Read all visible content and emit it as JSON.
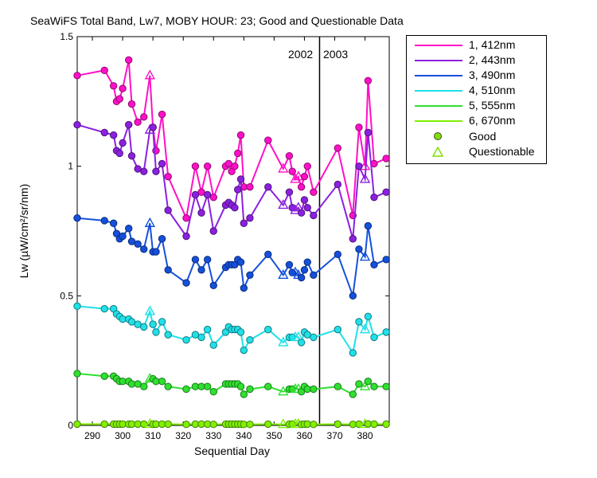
{
  "chart_data": {
    "type": "line",
    "title": "SeaWiFS Total Band,  Lw7, MOBY HOUR: 23;  Good and Questionable Data",
    "xlabel": "Sequential Day",
    "ylabel": "Lw (µW/cm²/sr/nm)",
    "xlim": [
      285,
      388
    ],
    "ylim": [
      0,
      1.5
    ],
    "xticks": [
      290,
      300,
      310,
      320,
      330,
      340,
      350,
      360,
      370,
      380
    ],
    "yticks": [
      0,
      0.5,
      1,
      1.5
    ],
    "ytick_labels": [
      "0",
      "0.5",
      "1",
      "1.5"
    ],
    "grid": false,
    "legend_position": "outside-right",
    "year_divider_x": 365,
    "year_labels": [
      "2002",
      "2003"
    ],
    "x": [
      285,
      294,
      297,
      298,
      299,
      300,
      302,
      303,
      305,
      307,
      309,
      310,
      311,
      313,
      315,
      321,
      324,
      326,
      328,
      330,
      334,
      335,
      336,
      337,
      338,
      339,
      340,
      342,
      348,
      353,
      355,
      356,
      357,
      358,
      359,
      360,
      361,
      363,
      371,
      376,
      378,
      380,
      381,
      383,
      387
    ],
    "series": [
      {
        "name": "1, 412nm",
        "color": "#ff10c8",
        "values": [
          1.35,
          1.37,
          1.31,
          1.25,
          1.26,
          1.3,
          1.41,
          1.24,
          1.17,
          1.19,
          1.35,
          1.15,
          1.06,
          1.2,
          0.96,
          0.8,
          1.0,
          0.9,
          1.0,
          0.88,
          1.0,
          1.01,
          0.98,
          1.0,
          1.05,
          1.12,
          0.92,
          0.92,
          1.1,
          0.99,
          1.04,
          0.98,
          0.95,
          0.96,
          0.92,
          0.96,
          1.0,
          0.9,
          1.07,
          0.81,
          1.15,
          1.0,
          1.33,
          1.01,
          1.03
        ]
      },
      {
        "name": "2, 443nm",
        "color": "#8c20e0",
        "values": [
          1.16,
          1.13,
          1.12,
          1.06,
          1.05,
          1.09,
          1.16,
          1.04,
          0.99,
          0.98,
          1.14,
          1.15,
          0.98,
          1.01,
          0.83,
          0.73,
          0.89,
          0.82,
          0.89,
          0.75,
          0.85,
          0.86,
          0.85,
          0.84,
          0.91,
          0.95,
          0.78,
          0.8,
          0.92,
          0.85,
          0.9,
          0.84,
          0.83,
          0.84,
          0.82,
          0.87,
          0.84,
          0.81,
          0.93,
          0.72,
          1.0,
          0.95,
          1.13,
          0.88,
          0.9
        ]
      },
      {
        "name": "3, 490nm",
        "color": "#1450dc",
        "values": [
          0.8,
          0.79,
          0.78,
          0.74,
          0.72,
          0.73,
          0.76,
          0.71,
          0.7,
          0.68,
          0.78,
          0.67,
          0.67,
          0.72,
          0.6,
          0.55,
          0.64,
          0.6,
          0.64,
          0.54,
          0.61,
          0.62,
          0.62,
          0.62,
          0.64,
          0.63,
          0.53,
          0.58,
          0.66,
          0.58,
          0.62,
          0.59,
          0.59,
          0.58,
          0.57,
          0.6,
          0.63,
          0.58,
          0.66,
          0.5,
          0.68,
          0.65,
          0.77,
          0.62,
          0.64
        ]
      },
      {
        "name": "4, 510nm",
        "color": "#20e0e8",
        "values": [
          0.46,
          0.45,
          0.45,
          0.43,
          0.42,
          0.41,
          0.41,
          0.4,
          0.39,
          0.38,
          0.44,
          0.39,
          0.36,
          0.4,
          0.35,
          0.33,
          0.35,
          0.34,
          0.37,
          0.31,
          0.36,
          0.38,
          0.37,
          0.37,
          0.37,
          0.36,
          0.29,
          0.33,
          0.37,
          0.32,
          0.34,
          0.34,
          0.34,
          0.34,
          0.32,
          0.36,
          0.35,
          0.34,
          0.37,
          0.28,
          0.4,
          0.37,
          0.42,
          0.34,
          0.36
        ]
      },
      {
        "name": "5, 555nm",
        "color": "#30e030",
        "values": [
          0.2,
          0.19,
          0.19,
          0.18,
          0.17,
          0.17,
          0.17,
          0.16,
          0.16,
          0.15,
          0.18,
          0.18,
          0.17,
          0.17,
          0.15,
          0.14,
          0.15,
          0.15,
          0.15,
          0.13,
          0.16,
          0.16,
          0.16,
          0.16,
          0.16,
          0.15,
          0.12,
          0.14,
          0.15,
          0.13,
          0.14,
          0.14,
          0.14,
          0.14,
          0.13,
          0.15,
          0.14,
          0.14,
          0.15,
          0.12,
          0.16,
          0.15,
          0.17,
          0.15,
          0.15
        ]
      },
      {
        "name": "6, 670nm",
        "color": "#80f000",
        "values": [
          0.005,
          0.005,
          0.005,
          0.005,
          0.005,
          0.005,
          0.005,
          0.005,
          0.005,
          0.005,
          0.005,
          0.005,
          0.005,
          0.005,
          0.005,
          0.004,
          0.005,
          0.005,
          0.005,
          0.004,
          0.005,
          0.005,
          0.005,
          0.005,
          0.005,
          0.005,
          0.004,
          0.004,
          0.005,
          0.004,
          0.005,
          0.005,
          0.005,
          0.005,
          0.004,
          0.005,
          0.005,
          0.004,
          0.005,
          0.004,
          0.005,
          0.005,
          0.006,
          0.005,
          0.005
        ]
      }
    ],
    "questionable_x": [
      309,
      353,
      357,
      358,
      380
    ],
    "marker_legend": [
      {
        "label": "Good",
        "marker": "circle",
        "color": "#80e000"
      },
      {
        "label": "Questionable",
        "marker": "triangle",
        "color": "#80e000"
      }
    ]
  }
}
